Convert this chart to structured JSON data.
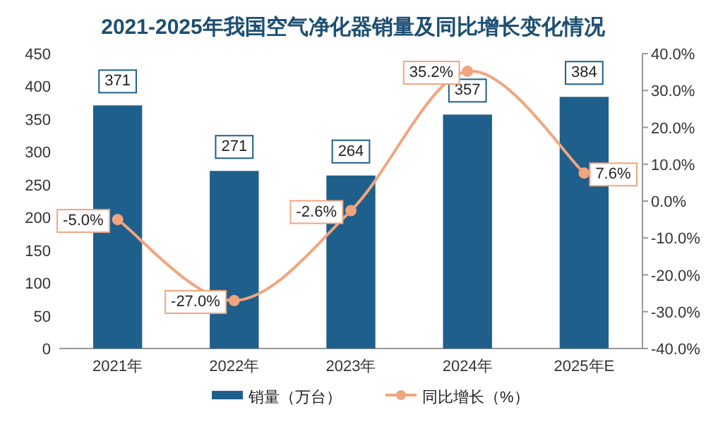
{
  "chart_data": {
    "type": "bar",
    "title": "2021-2025年我国空气净化器销量及同比增长变化情况",
    "categories": [
      "2021年",
      "2022年",
      "2023年",
      "2024年",
      "2025年E"
    ],
    "series": [
      {
        "name": "销量（万台）",
        "color": "#1f5f8b",
        "values": [
          371,
          271,
          264,
          357,
          384
        ],
        "value_labels": [
          "371",
          "271",
          "264",
          "357",
          "384"
        ]
      },
      {
        "name": "同比增长（%）",
        "type": "line",
        "axis": "y2",
        "color": "#f0a57e",
        "marker": "circle",
        "values": [
          -5.0,
          -27.0,
          -2.6,
          35.2,
          7.6
        ],
        "value_labels": [
          "-5.0%",
          "-27.0%",
          "-2.6%",
          "35.2%",
          "7.6%"
        ]
      }
    ],
    "ylim": [
      0,
      450
    ],
    "yticks": [
      0,
      50,
      100,
      150,
      200,
      250,
      300,
      350,
      400,
      450
    ],
    "y2lim": [
      -40,
      40
    ],
    "y2ticks": [
      {
        "value": 40,
        "label": "40.0%"
      },
      {
        "value": 30,
        "label": "30.0%"
      },
      {
        "value": 20,
        "label": "20.0%"
      },
      {
        "value": 10,
        "label": "10.0%"
      },
      {
        "value": 0,
        "label": "0.0%"
      },
      {
        "value": -10,
        "label": "-10.0%"
      },
      {
        "value": -20,
        "label": "-20.0%"
      },
      {
        "value": -30,
        "label": "-30.0%"
      },
      {
        "value": -40,
        "label": "-40.0%"
      }
    ],
    "legend": "bottom",
    "grid": false
  }
}
